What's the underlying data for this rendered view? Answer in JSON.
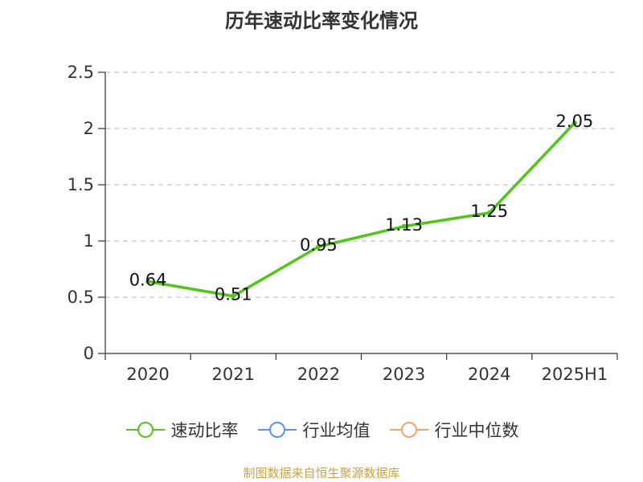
{
  "title": "历年速动比率变化情况",
  "source": "制图数据来自恒生聚源数据库",
  "legend": [
    {
      "name": "速动比率",
      "color": "#52c41a"
    },
    {
      "name": "行业均值",
      "color": "#5b8ff9"
    },
    {
      "name": "行业中位数",
      "color": "#f6a26b"
    }
  ],
  "chart_data": {
    "type": "line",
    "title": "历年速动比率变化情况",
    "categories": [
      "2020",
      "2021",
      "2022",
      "2023",
      "2024",
      "2025H1"
    ],
    "series": [
      {
        "name": "速动比率",
        "values": [
          0.64,
          0.51,
          0.95,
          1.13,
          1.25,
          2.05
        ],
        "labels": [
          "0.64",
          "0.51",
          "0.95",
          "1.13",
          "1.25",
          "2.05"
        ],
        "color": "#52c41a"
      }
    ],
    "y_ticks": [
      "0",
      "0.5",
      "1",
      "1.5",
      "2",
      "2.5"
    ],
    "ylim": [
      0,
      2.5
    ],
    "grid": true,
    "legend_position": "bottom"
  }
}
